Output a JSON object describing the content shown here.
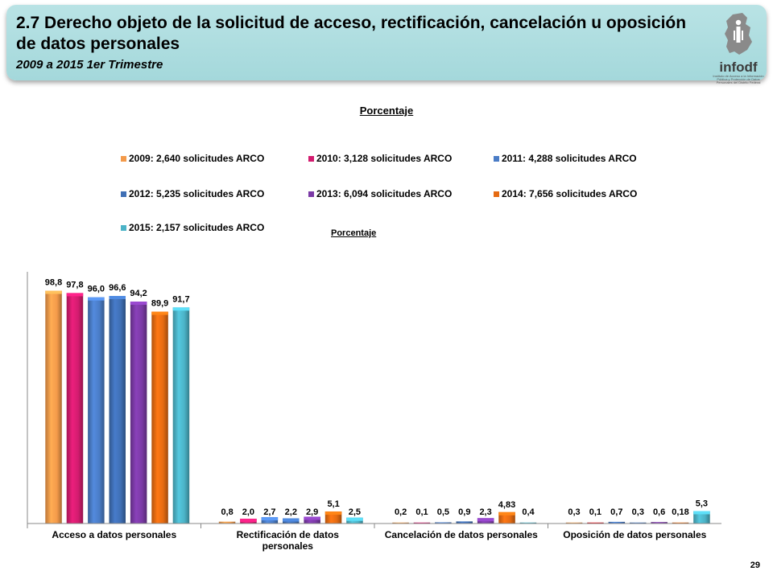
{
  "header": {
    "title": "2.7 Derecho objeto de la solicitud de acceso, rectificación, cancelación u oposición de datos personales",
    "subtitle": "2009 a 2015 1er Trimestre",
    "logo_text": "infodf",
    "logo_small": "Instituto de Acceso a la Información Pública y Protección de Datos Personales del Distrito Federal"
  },
  "top_label": "Porcentaje",
  "chart_data": {
    "type": "bar",
    "title": "Porcentaje",
    "categories": [
      "Acceso a datos personales",
      "Rectificación de datos personales",
      "Cancelación de datos personales",
      "Oposición de datos personales"
    ],
    "series": [
      {
        "name": "2009: 2,640 solicitudes ARCO",
        "color": "#f39a4a",
        "values": [
          98.8,
          0.8,
          0.2,
          0.3
        ],
        "labels": [
          "98,8",
          "0,8",
          "0,2",
          "0,3"
        ]
      },
      {
        "name": "2010: 3,128 solicitudes ARCO",
        "color": "#d31c6f",
        "values": [
          97.8,
          2.0,
          0.1,
          0.1
        ],
        "labels": [
          "97,8",
          "2,0",
          "0,1",
          "0,1"
        ]
      },
      {
        "name": "2011: 4,288 solicitudes ARCO",
        "color": "#4a7cc6",
        "values": [
          96.0,
          2.7,
          0.5,
          0.7
        ],
        "labels": [
          "96,0",
          "2,7",
          "0,5",
          "0,7"
        ]
      },
      {
        "name": "2012: 5,235 solicitudes ARCO",
        "color": "#3f6fb5",
        "values": [
          96.6,
          2.2,
          0.9,
          0.3
        ],
        "labels": [
          "96,6",
          "2,2",
          "0,9",
          "0,3"
        ]
      },
      {
        "name": "2013: 6,094 solicitudes ARCO",
        "color": "#7b3aa6",
        "values": [
          94.2,
          2.9,
          2.3,
          0.6
        ],
        "labels": [
          "94,2",
          "2,9",
          "2,3",
          "0,6"
        ]
      },
      {
        "name": "2014: 7,656 solicitudes ARCO",
        "color": "#e56b12",
        "values": [
          89.9,
          5.1,
          4.83,
          0.18
        ],
        "labels": [
          "89,9",
          "5,1",
          "4,83",
          "0,18"
        ]
      },
      {
        "name": "2015: 2,157 solicitudes ARCO",
        "color": "#4bb3c7",
        "values": [
          91.7,
          2.5,
          0.4,
          5.3
        ],
        "labels": [
          "91,7",
          "2,5",
          "0,4",
          "5,3"
        ]
      }
    ],
    "special_colors": {
      "1.3": "#e0101a"
    },
    "ylim": [
      0,
      100
    ],
    "grid": false,
    "legend": "top"
  },
  "page_number": "29"
}
